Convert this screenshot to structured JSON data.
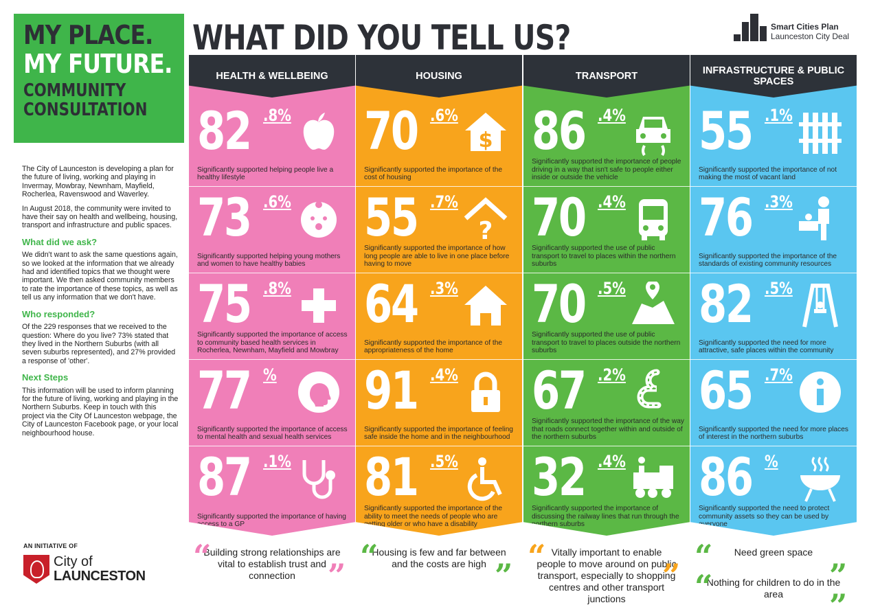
{
  "hero": {
    "line1": "MY PLACE.",
    "line2": "MY FUTURE.",
    "line3a": "COMMUNITY",
    "line3b": "CONSULTATION"
  },
  "title": "WHAT DID YOU TELL US?",
  "brand": {
    "name": "Smart Cities Plan",
    "sub": "Launceston City Deal",
    "icon": "city-buildings-icon"
  },
  "intro": {
    "p1": "The City of Launceston is developing a plan for the future of living, working and playing in Invermay, Mowbray, Newnham, Mayfield, Rocherlea, Ravenswood and Waverley.",
    "p2": "In August 2018, the community were invited to have their say on health and wellbeing, housing, transport and infrastructure and public spaces.",
    "h_ask": "What did we ask?",
    "p_ask": "We didn't want to ask the same questions again, so we looked at the information that we already had and identified topics that we thought were important. We then asked community members to rate the importance of these topics, as well as tell us any information that we don't have.",
    "h_who": "Who responded?",
    "p_who": "Of the 229 responses that we received to the question: Where do you live? 73% stated that they lived in the Northern Suburbs (with all seven suburbs represented), and 27% provided a response of 'other'.",
    "h_next": "Next Steps",
    "p_next": "This information will be used to inform planning for the future of living, working and playing in the Northern Suburbs. Keep in touch with this project via the City Of Launceston webpage, the City of Launceston Facebook page, or your local neighbourhood house."
  },
  "initiative": "AN INITIATIVE OF",
  "logo": {
    "l1": "City of",
    "l2": "LAUNCESTON"
  },
  "colors": {
    "pink": "#f07fb8",
    "orange": "#f8a41c",
    "green": "#5bb845",
    "blue": "#5ac6f0",
    "dark": "#2d3239",
    "hero": "#3fb54a"
  },
  "columns": [
    {
      "title": "HEALTH & WELLBEING",
      "color": "#f07fb8",
      "quote_color": "#f07fb8",
      "stats": [
        {
          "int": "82",
          "dec": ".8%",
          "icon": "apple-icon",
          "desc": "Significantly supported helping people live a healthy lifestyle"
        },
        {
          "int": "73",
          "dec": ".6%",
          "icon": "baby-icon",
          "desc": "Significantly supported helping young mothers and women to have healthy babies"
        },
        {
          "int": "75",
          "dec": ".8%",
          "icon": "medical-cross-icon",
          "desc": "Significantly supported the importance of access to community based health services in Rocherlea, Newnham, Mayfield and Mowbray"
        },
        {
          "int": "77",
          "dec": "%",
          "icon": "head-profile-icon",
          "desc": "Significantly supported the importance of access to mental health and sexual health services"
        },
        {
          "int": "87",
          "dec": ".1%",
          "icon": "stethoscope-icon",
          "desc": "Significantly supported the importance of having access to a GP"
        }
      ],
      "quotes": [
        "Building strong relationships are vital to establish trust and connection"
      ]
    },
    {
      "title": "HOUSING",
      "color": "#f8a41c",
      "quote_color": "#5bb845",
      "stats": [
        {
          "int": "70",
          "dec": ".6%",
          "icon": "house-dollar-icon",
          "desc": "Significantly supported the importance of the cost of housing"
        },
        {
          "int": "55",
          "dec": ".7%",
          "icon": "house-question-icon",
          "desc": "Significantly supported the importance of how long people are able to live in one place before having to move"
        },
        {
          "int": "64",
          "dec": ".3%",
          "icon": "house-icon",
          "desc": "Significantly supported the importance of the appropriateness of the home"
        },
        {
          "int": "91",
          "dec": ".4%",
          "icon": "padlock-icon",
          "desc": "Significantly supported the importance of feeling safe inside the home and in the neighbourhood"
        },
        {
          "int": "81",
          "dec": ".5%",
          "icon": "wheelchair-icon",
          "desc": "Significantly supported the importance of the ability to meet the needs of people who are getting older or who have a disability"
        }
      ],
      "quotes": [
        "Housing is few and far between and the costs are high"
      ]
    },
    {
      "title": "TRANSPORT",
      "color": "#5bb845",
      "quote_color": "#f8a41c",
      "stats": [
        {
          "int": "86",
          "dec": ".4%",
          "icon": "car-icon",
          "desc": "Significantly supported the importance of people driving in a way that isn't safe to people either inside or outside the vehicle"
        },
        {
          "int": "70",
          "dec": ".4%",
          "icon": "bus-icon",
          "desc": "Significantly supported the use of public transport to travel to places within the northern suburbs"
        },
        {
          "int": "70",
          "dec": ".5%",
          "icon": "map-pin-icon",
          "desc": "Significantly supported the use of  public transport to travel to places outside the northern suburbs"
        },
        {
          "int": "67",
          "dec": ".2%",
          "icon": "winding-road-icon",
          "desc": "Significantly supported the importance of the way that roads connect together within and outside of the northern suburbs"
        },
        {
          "int": "32",
          "dec": ".4%",
          "icon": "train-icon",
          "desc": "Significantly supported the importance of discussing the railway lines that run through the northern suburbs"
        }
      ],
      "quotes": [
        "Vitally important to enable people to move around on public transport, especially to shopping centres and other transport junctions"
      ]
    },
    {
      "title": "INFRASTRUCTURE & PUBLIC SPACES",
      "color": "#5ac6f0",
      "quote_color": "#5bb845",
      "stats": [
        {
          "int": "55",
          "dec": ".1%",
          "icon": "fence-icon",
          "desc": "Significantly supported the importance of not making the most of vacant land"
        },
        {
          "int": "76",
          "dec": ".3%",
          "icon": "community-person-icon",
          "desc": "Significantly supported the importance of the standards of existing community resources"
        },
        {
          "int": "82",
          "dec": ".5%",
          "icon": "swing-icon",
          "desc": "Significantly supported the need for more attractive, safe places within the community"
        },
        {
          "int": "65",
          "dec": ".7%",
          "icon": "info-icon",
          "desc": "Significantly supported the need for more places of interest in the northern suburbs"
        },
        {
          "int": "86",
          "dec": "%",
          "icon": "bbq-icon",
          "desc": "Significantly supported the need to protect community assets so they can be used by everyone"
        }
      ],
      "quotes": [
        "Need green space",
        "Nothing for children to do in the area"
      ]
    }
  ]
}
